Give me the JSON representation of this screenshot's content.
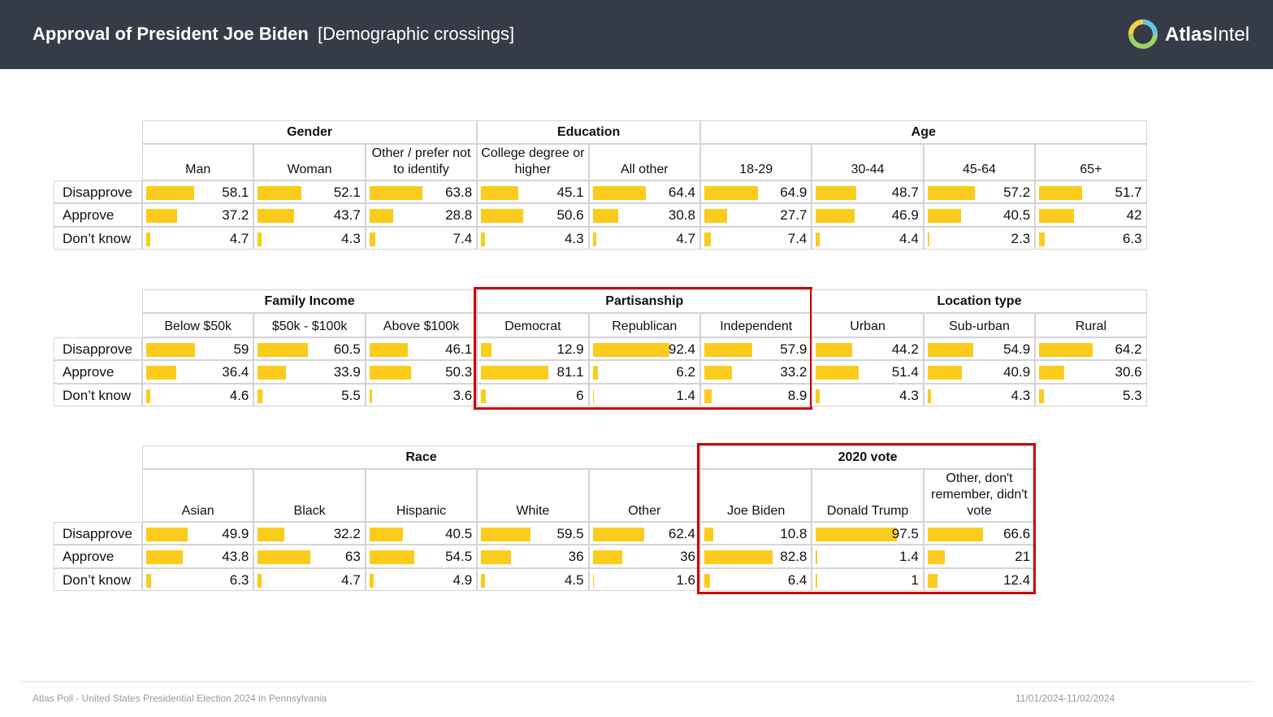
{
  "header": {
    "title": "Approval of President Joe Biden",
    "subtitle": "[Demographic crossings]",
    "brand_bold": "Atlas",
    "brand_light": "Intel",
    "logo_icon": "atlasintel-logo-icon"
  },
  "colors": {
    "bar": "#fbcc1b",
    "highlight": "#cc0000",
    "header_bg": "#363c47"
  },
  "chart_data": {
    "type": "table",
    "bar_scale_max": 100,
    "row_labels": [
      "Disapprove",
      "Approve",
      "Don’t know"
    ],
    "tables": [
      {
        "groups": [
          {
            "name": "Gender",
            "columns": [
              {
                "label": "Man",
                "values": [
                  58.1,
                  37.2,
                  4.7
                ]
              },
              {
                "label": "Woman",
                "values": [
                  52.1,
                  43.7,
                  4.3
                ]
              },
              {
                "label": "Other / prefer not to identify",
                "values": [
                  63.8,
                  28.8,
                  7.4
                ]
              }
            ]
          },
          {
            "name": "Education",
            "columns": [
              {
                "label": "College degree or higher",
                "values": [
                  45.1,
                  50.6,
                  4.3
                ]
              },
              {
                "label": "All other",
                "values": [
                  64.4,
                  30.8,
                  4.7
                ]
              }
            ]
          },
          {
            "name": "Age",
            "columns": [
              {
                "label": "18-29",
                "values": [
                  64.9,
                  27.7,
                  7.4
                ]
              },
              {
                "label": "30-44",
                "values": [
                  48.7,
                  46.9,
                  4.4
                ]
              },
              {
                "label": "45-64",
                "values": [
                  57.2,
                  40.5,
                  2.3
                ]
              },
              {
                "label": "65+",
                "values": [
                  51.7,
                  42,
                  6.3
                ]
              }
            ]
          }
        ]
      },
      {
        "groups": [
          {
            "name": "Family Income",
            "columns": [
              {
                "label": "Below $50k",
                "values": [
                  59,
                  36.4,
                  4.6
                ]
              },
              {
                "label": "$50k - $100k",
                "values": [
                  60.5,
                  33.9,
                  5.5
                ]
              },
              {
                "label": "Above $100k",
                "values": [
                  46.1,
                  50.3,
                  3.6
                ]
              }
            ]
          },
          {
            "name": "Partisanship",
            "highlighted": true,
            "columns": [
              {
                "label": "Democrat",
                "values": [
                  12.9,
                  81.1,
                  6
                ]
              },
              {
                "label": "Republican",
                "values": [
                  92.4,
                  6.2,
                  1.4
                ]
              },
              {
                "label": "Independent",
                "values": [
                  57.9,
                  33.2,
                  8.9
                ]
              }
            ]
          },
          {
            "name": "Location type",
            "columns": [
              {
                "label": "Urban",
                "values": [
                  44.2,
                  51.4,
                  4.3
                ]
              },
              {
                "label": "Sub-urban",
                "values": [
                  54.9,
                  40.9,
                  4.3
                ]
              },
              {
                "label": "Rural",
                "values": [
                  64.2,
                  30.6,
                  5.3
                ]
              }
            ]
          }
        ]
      },
      {
        "groups": [
          {
            "name": "Race",
            "columns": [
              {
                "label": "Asian",
                "values": [
                  49.9,
                  43.8,
                  6.3
                ]
              },
              {
                "label": "Black",
                "values": [
                  32.2,
                  63,
                  4.7
                ]
              },
              {
                "label": "Hispanic",
                "values": [
                  40.5,
                  54.5,
                  4.9
                ]
              },
              {
                "label": "White",
                "values": [
                  59.5,
                  36,
                  4.5
                ]
              },
              {
                "label": "Other",
                "values": [
                  62.4,
                  36,
                  1.6
                ]
              }
            ]
          },
          {
            "name": "2020 vote",
            "highlighted": true,
            "columns": [
              {
                "label": "Joe Biden",
                "values": [
                  10.8,
                  82.8,
                  6.4
                ]
              },
              {
                "label": "Donald Trump",
                "values": [
                  97.5,
                  1.4,
                  1
                ]
              },
              {
                "label": "Other, don't remember, didn't vote",
                "values": [
                  66.6,
                  21,
                  12.4
                ]
              }
            ]
          }
        ]
      }
    ]
  },
  "footer": {
    "source": "Atlas Poll - United States Presidential Election 2024 in Pennsylvania",
    "dates": "11/01/2024-11/02/2024"
  }
}
